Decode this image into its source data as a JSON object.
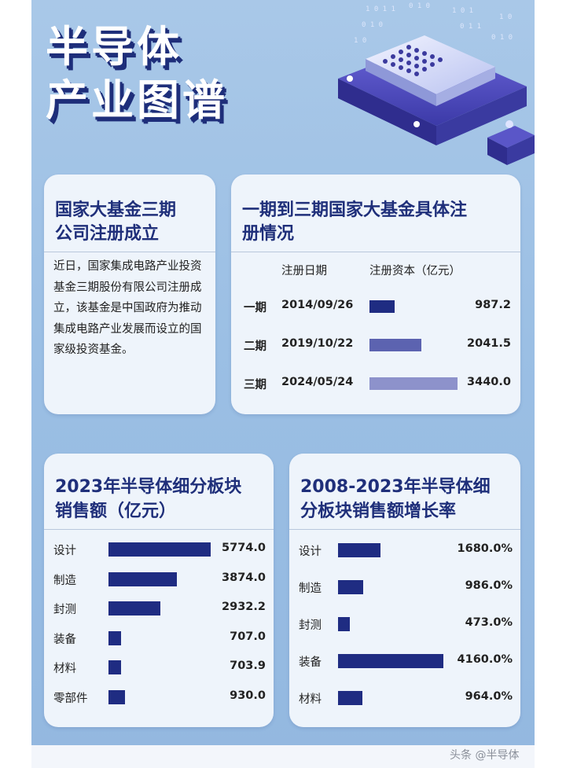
{
  "title": {
    "line1": "半导体",
    "line2": "产业图谱"
  },
  "news_card": {
    "title_line1": "国家大基金三期",
    "title_line2": "公司注册成立",
    "body": "近日，国家集成电路产业投资基金三期股份有限公司注册成立，该基金是中国政府为推动集成电路产业发展而设立的国家级投资基金。"
  },
  "fund_card": {
    "title_line1": "一期到三期国家大基金具体注",
    "title_line2": "册情况",
    "header_date": "注册日期",
    "header_capital": "注册资本（亿元）",
    "colors": [
      "#1f2c82",
      "#5c63b0",
      "#8d92cb"
    ]
  },
  "sales_card": {
    "title_line1": "2023年半导体细分板块",
    "title_line2": "销售额（亿元）"
  },
  "growth_card": {
    "title_line1": "2008-2023年半导体细",
    "title_line2": "分板块销售额增长率"
  },
  "chart_data": [
    {
      "type": "bar",
      "orientation": "horizontal",
      "title": "一期到三期国家大基金具体注册情况",
      "categories": [
        "一期",
        "二期",
        "三期"
      ],
      "dates": [
        "2014/09/26",
        "2019/10/22",
        "2024/05/24"
      ],
      "values": [
        987.2,
        2041.5,
        3440.0
      ],
      "labels": [
        "987.2",
        "2041.5",
        "3440.0"
      ],
      "xlim": [
        0,
        3440.0
      ]
    },
    {
      "type": "bar",
      "orientation": "horizontal",
      "title": "2023年半导体细分板块销售额（亿元）",
      "categories": [
        "设计",
        "制造",
        "封测",
        "装备",
        "材料",
        "零部件"
      ],
      "values": [
        5774.0,
        3874.0,
        2932.2,
        707.0,
        703.9,
        930.0
      ],
      "labels": [
        "5774.0",
        "3874.0",
        "2932.2",
        "707.0",
        "703.9",
        "930.0"
      ],
      "xlim": [
        0,
        5774.0
      ]
    },
    {
      "type": "bar",
      "orientation": "horizontal",
      "title": "2008-2023年半导体细分板块销售额增长率",
      "categories": [
        "设计",
        "制造",
        "封测",
        "装备",
        "材料"
      ],
      "values": [
        1680.0,
        986.0,
        473.0,
        4160.0,
        964.0
      ],
      "labels": [
        "1680.0%",
        "986.0%",
        "473.0%",
        "4160.0%",
        "964.0%"
      ],
      "xlim": [
        0,
        4160.0
      ]
    }
  ],
  "watermark": "头条 @半导体",
  "accent_color": "#1f2c82"
}
